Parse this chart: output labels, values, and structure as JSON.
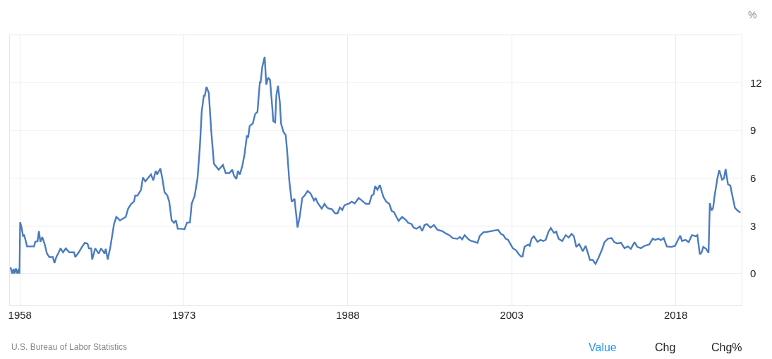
{
  "chart_data": {
    "type": "line",
    "ylabel": "%",
    "annotations": [
      "U.S. Bureau of Labor Statistics",
      "Value",
      "Chg",
      "Chg%"
    ],
    "xlim": [
      1957.08,
      2024.03
    ],
    "xticks": [
      1958,
      1973,
      1988,
      2003,
      2018
    ],
    "ylim": [
      -2,
      15
    ],
    "yticks": [
      0,
      3,
      6,
      9,
      12
    ],
    "grid": true,
    "marker": "none",
    "line_style": "solid",
    "x": [
      1957.14,
      1957.29,
      1957.42,
      1957.5,
      1957.63,
      1957.76,
      1957.89,
      1957.96,
      1958.02,
      1958.15,
      1958.28,
      1958.39,
      1958.49,
      1958.65,
      1959.29,
      1959.4,
      1959.61,
      1959.74,
      1959.87,
      1960.04,
      1960.26,
      1960.47,
      1960.69,
      1961.01,
      1961.16,
      1961.33,
      1961.55,
      1961.72,
      1961.94,
      1962.2,
      1962.52,
      1962.95,
      1963.06,
      1963.38,
      1963.6,
      1963.92,
      1964.18,
      1964.31,
      1964.52,
      1964.61,
      1964.89,
      1965.21,
      1965.42,
      1965.75,
      1965.85,
      1966.03,
      1966.28,
      1966.61,
      1966.82,
      1967.15,
      1967.68,
      1967.9,
      1968.18,
      1968.44,
      1968.55,
      1968.76,
      1969.08,
      1969.25,
      1969.47,
      1969.73,
      1969.99,
      1970.2,
      1970.42,
      1970.55,
      1970.85,
      1971.02,
      1971.23,
      1971.49,
      1971.66,
      1971.88,
      1972.1,
      1972.27,
      1972.44,
      1972.74,
      1973.06,
      1973.28,
      1973.56,
      1973.71,
      1973.99,
      1974.25,
      1974.46,
      1974.63,
      1974.83,
      1974.9,
      1975.07,
      1975.28,
      1975.5,
      1975.75,
      1976.18,
      1976.57,
      1976.83,
      1977.15,
      1977.43,
      1977.58,
      1977.8,
      1977.95,
      1978.12,
      1978.34,
      1978.55,
      1978.77,
      1978.87,
      1979.02,
      1979.3,
      1979.52,
      1979.73,
      1979.95,
      1980.02,
      1980.17,
      1980.39,
      1980.54,
      1980.71,
      1980.88,
      1981.03,
      1981.18,
      1981.35,
      1981.46,
      1981.61,
      1981.78,
      1981.89,
      1982.11,
      1982.32,
      1982.47,
      1982.64,
      1982.86,
      1983.12,
      1983.4,
      1983.61,
      1983.83,
      1984.04,
      1984.32,
      1984.58,
      1984.9,
      1985.05,
      1985.23,
      1985.61,
      1985.87,
      1986.09,
      1986.26,
      1986.52,
      1986.84,
      1987.06,
      1987.27,
      1987.49,
      1987.7,
      1988.13,
      1988.35,
      1988.63,
      1988.99,
      1989.27,
      1989.64,
      1989.96,
      1990.18,
      1990.35,
      1990.5,
      1990.71,
      1990.93,
      1991.25,
      1991.51,
      1991.79,
      1992.01,
      1992.22,
      1992.44,
      1992.65,
      1992.97,
      1993.36,
      1993.51,
      1993.83,
      1994.01,
      1994.27,
      1994.59,
      1994.8,
      1995.02,
      1995.23,
      1995.56,
      1995.88,
      1996.2,
      1996.63,
      1996.96,
      1997.28,
      1997.6,
      1998.03,
      1998.25,
      1998.46,
      1998.68,
      1999.0,
      1999.21,
      1999.54,
      1999.86,
      2000.07,
      2000.4,
      2000.72,
      2001.15,
      2001.47,
      2001.75,
      2002.01,
      2002.23,
      2002.44,
      2002.66,
      2003.09,
      2003.41,
      2003.63,
      2003.84,
      2003.99,
      2004.16,
      2004.49,
      2004.64,
      2004.81,
      2005.02,
      2005.35,
      2005.63,
      2005.88,
      2006.1,
      2006.36,
      2006.57,
      2006.85,
      2007.07,
      2007.28,
      2007.61,
      2007.93,
      2008.21,
      2008.47,
      2008.68,
      2008.9,
      2009.16,
      2009.5,
      2009.76,
      2010.15,
      2010.4,
      2010.66,
      2010.94,
      2011.26,
      2011.48,
      2011.8,
      2012.13,
      2012.38,
      2012.66,
      2012.99,
      2013.31,
      2013.63,
      2013.89,
      2014.23,
      2014.49,
      2014.82,
      2015.14,
      2015.57,
      2015.89,
      2016.11,
      2016.43,
      2016.64,
      2016.9,
      2017.18,
      2017.61,
      2017.94,
      2018.15,
      2018.41,
      2018.58,
      2018.9,
      2019.18,
      2019.48,
      2019.83,
      2019.98,
      2020.2,
      2020.35,
      2020.52,
      2020.78,
      2021.0,
      2021.12,
      2021.27,
      2021.42,
      2021.55,
      2021.81,
      2021.98,
      2022.24,
      2022.41,
      2022.56,
      2022.78,
      2022.99,
      2023.21,
      2023.42,
      2023.64,
      2023.92
    ],
    "series": [
      {
        "color": "#4a7cc0",
        "values": [
          0.4,
          0,
          0.3,
          0,
          0.33,
          0,
          0.3,
          0,
          3.23,
          2.9,
          2.38,
          2.41,
          2.16,
          1.71,
          1.71,
          2.0,
          2.04,
          2.68,
          2.0,
          2.3,
          1.86,
          1.26,
          1.04,
          1.04,
          0.67,
          1.04,
          1.34,
          1.59,
          1.34,
          1.59,
          1.34,
          1.34,
          1.04,
          1.34,
          1.59,
          1.93,
          1.89,
          1.59,
          1.59,
          0.89,
          1.59,
          1.26,
          1.59,
          1.26,
          1.56,
          0.89,
          1.71,
          3.12,
          3.57,
          3.35,
          3.57,
          4.09,
          4.39,
          4.54,
          4.91,
          4.91,
          5.28,
          6.05,
          5.8,
          6.02,
          6.24,
          5.87,
          6.47,
          6.24,
          6.62,
          6.02,
          5.13,
          4.91,
          4.53,
          3.35,
          3.2,
          3.35,
          2.82,
          2.82,
          2.8,
          3.2,
          3.23,
          4.39,
          4.91,
          6.02,
          7.95,
          10.18,
          11.23,
          11.15,
          11.75,
          11.37,
          9.0,
          6.91,
          6.54,
          6.84,
          6.32,
          6.32,
          6.54,
          6.17,
          5.95,
          6.47,
          6.24,
          6.76,
          7.51,
          8.7,
          8.55,
          9.29,
          9.44,
          10.04,
          10.18,
          12.04,
          12.04,
          13.0,
          13.63,
          11.89,
          12.34,
          12.19,
          10.93,
          9.59,
          9.52,
          11.22,
          11.82,
          10.78,
          9.44,
          8.92,
          8.7,
          7.51,
          5.87,
          4.53,
          4.71,
          2.9,
          3.64,
          4.76,
          4.91,
          5.2,
          5.06,
          4.61,
          4.76,
          4.46,
          4.09,
          4.39,
          4.16,
          4.09,
          4.06,
          3.79,
          3.79,
          4.16,
          4.01,
          4.31,
          4.42,
          4.53,
          4.42,
          4.76,
          4.61,
          4.39,
          4.39,
          4.91,
          4.98,
          5.5,
          5.28,
          5.58,
          4.83,
          4.53,
          4.39,
          3.94,
          3.87,
          3.57,
          3.32,
          3.57,
          3.35,
          3.2,
          3.12,
          2.9,
          2.82,
          2.97,
          2.68,
          3.05,
          3.12,
          2.9,
          3.05,
          2.75,
          2.68,
          2.53,
          2.42,
          2.23,
          2.19,
          2.3,
          2.16,
          2.42,
          2.19,
          2.08,
          2.01,
          1.93,
          2.38,
          2.6,
          2.63,
          2.68,
          2.72,
          2.75,
          2.5,
          2.42,
          2.2,
          2.12,
          1.6,
          1.46,
          1.23,
          1.08,
          1.08,
          1.68,
          1.83,
          1.75,
          2.2,
          2.35,
          2.0,
          2.12,
          2.05,
          2.12,
          2.64,
          2.87,
          2.57,
          2.64,
          2.2,
          2.05,
          2.42,
          2.27,
          2.5,
          2.35,
          1.68,
          1.86,
          1.41,
          1.75,
          0.86,
          0.86,
          0.61,
          1.01,
          1.53,
          1.98,
          2.2,
          2.24,
          1.98,
          1.9,
          1.95,
          1.6,
          1.71,
          1.56,
          1.98,
          1.68,
          1.6,
          1.75,
          1.83,
          2.2,
          2.12,
          2.2,
          2.1,
          2.24,
          1.71,
          1.68,
          1.75,
          2.05,
          2.39,
          2.05,
          2.12,
          1.98,
          2.42,
          2.35,
          2.42,
          1.23,
          1.31,
          1.68,
          1.56,
          1.31,
          4.43,
          3.98,
          4.13,
          4.87,
          5.99,
          6.51,
          5.91,
          5.99,
          6.58,
          5.62,
          5.54,
          4.8,
          4.13,
          3.98,
          3.83
        ]
      }
    ]
  }
}
